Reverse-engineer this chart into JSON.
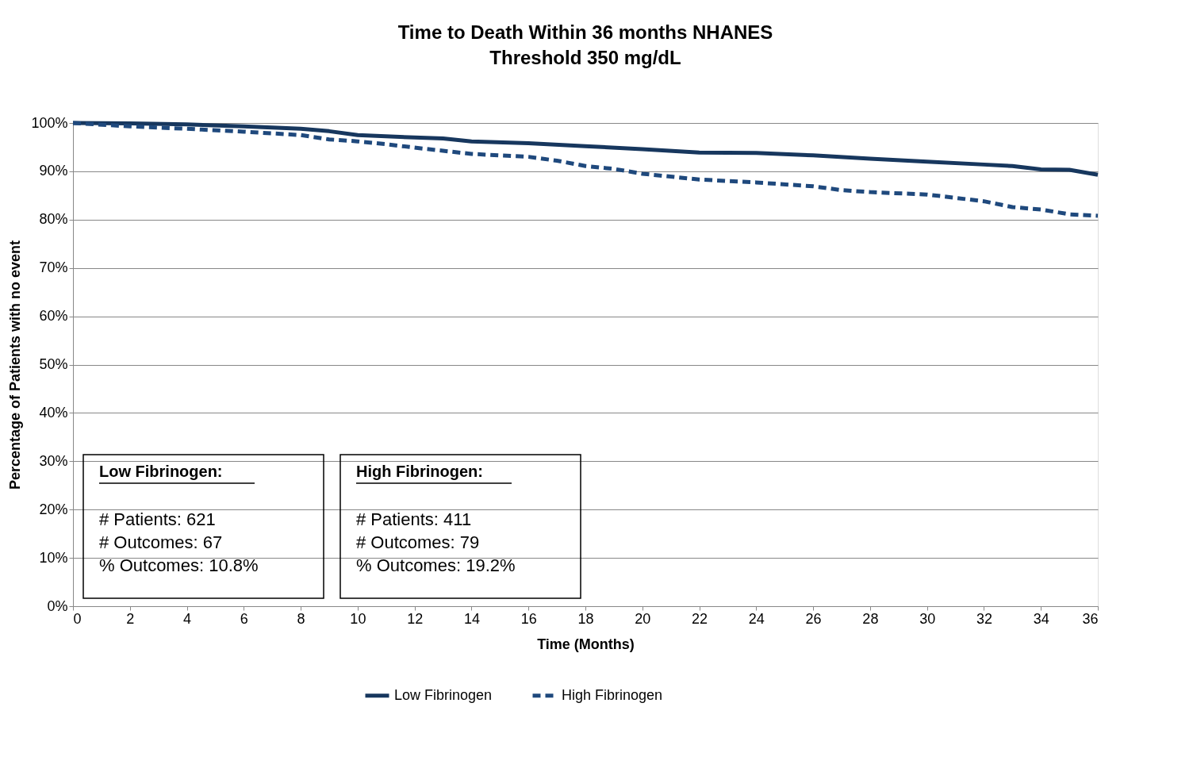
{
  "chart_data": {
    "type": "line",
    "title": "Time to Death Within 36 months NHANES",
    "subtitle": "Threshold 350 mg/dL",
    "xlabel": "Time (Months)",
    "ylabel": "Percentage of Patients with no event",
    "xlim": [
      0,
      36
    ],
    "xticks": [
      0,
      2,
      4,
      6,
      8,
      10,
      12,
      14,
      16,
      18,
      20,
      22,
      24,
      26,
      28,
      30,
      32,
      34,
      36
    ],
    "ylim": [
      0,
      100
    ],
    "yticks": [
      {
        "value": 0,
        "label": "0%"
      },
      {
        "value": 10,
        "label": "10%"
      },
      {
        "value": 20,
        "label": "20%"
      },
      {
        "value": 30,
        "label": "30%"
      },
      {
        "value": 40,
        "label": "40%"
      },
      {
        "value": 50,
        "label": "50%"
      },
      {
        "value": 60,
        "label": "60%"
      },
      {
        "value": 70,
        "label": "70%"
      },
      {
        "value": 80,
        "label": "80%"
      },
      {
        "value": 90,
        "label": "90%"
      },
      {
        "value": 100,
        "label": "100%"
      }
    ],
    "grid": "y",
    "legend": "bottom",
    "marker": "none",
    "series": [
      {
        "name": "Low Fibrinogen",
        "color": "#17375e",
        "line_style": "solid",
        "x": [
          0,
          2,
          4,
          6,
          8,
          9,
          10,
          12,
          13,
          14,
          16,
          18,
          20,
          22,
          24,
          26,
          28,
          30,
          32,
          33,
          34,
          35,
          36
        ],
        "values": [
          100,
          99.9,
          99.7,
          99.3,
          98.8,
          98.3,
          97.5,
          97.0,
          96.8,
          96.2,
          95.8,
          95.2,
          94.6,
          93.9,
          93.8,
          93.3,
          92.6,
          92.0,
          91.4,
          91.1,
          90.4,
          90.3,
          89.3
        ]
      },
      {
        "name": "High Fibrinogen",
        "color": "#1f497d",
        "line_style": "dashed",
        "x": [
          0,
          2,
          4,
          6,
          8,
          9,
          10,
          11,
          12,
          14,
          16,
          17,
          18,
          19,
          20,
          22,
          24,
          26,
          27,
          28,
          30,
          32,
          33,
          34,
          35,
          36
        ],
        "values": [
          100,
          99.3,
          98.8,
          98.2,
          97.5,
          96.6,
          96.2,
          95.6,
          94.9,
          93.6,
          93.0,
          92.2,
          91.1,
          90.5,
          89.5,
          88.3,
          87.7,
          86.9,
          86.1,
          85.7,
          85.2,
          83.8,
          82.6,
          82.1,
          81.1,
          80.8
        ]
      }
    ],
    "annotations": [
      "Low Fibrinogen:",
      "# Patients:      621\n# Outcomes:  67\n% Outcomes:  10.8%",
      "High Fibrinogen:",
      "# Patients:      411\n# Outcomes:  79\n% Outcomes:  19.2%"
    ]
  }
}
